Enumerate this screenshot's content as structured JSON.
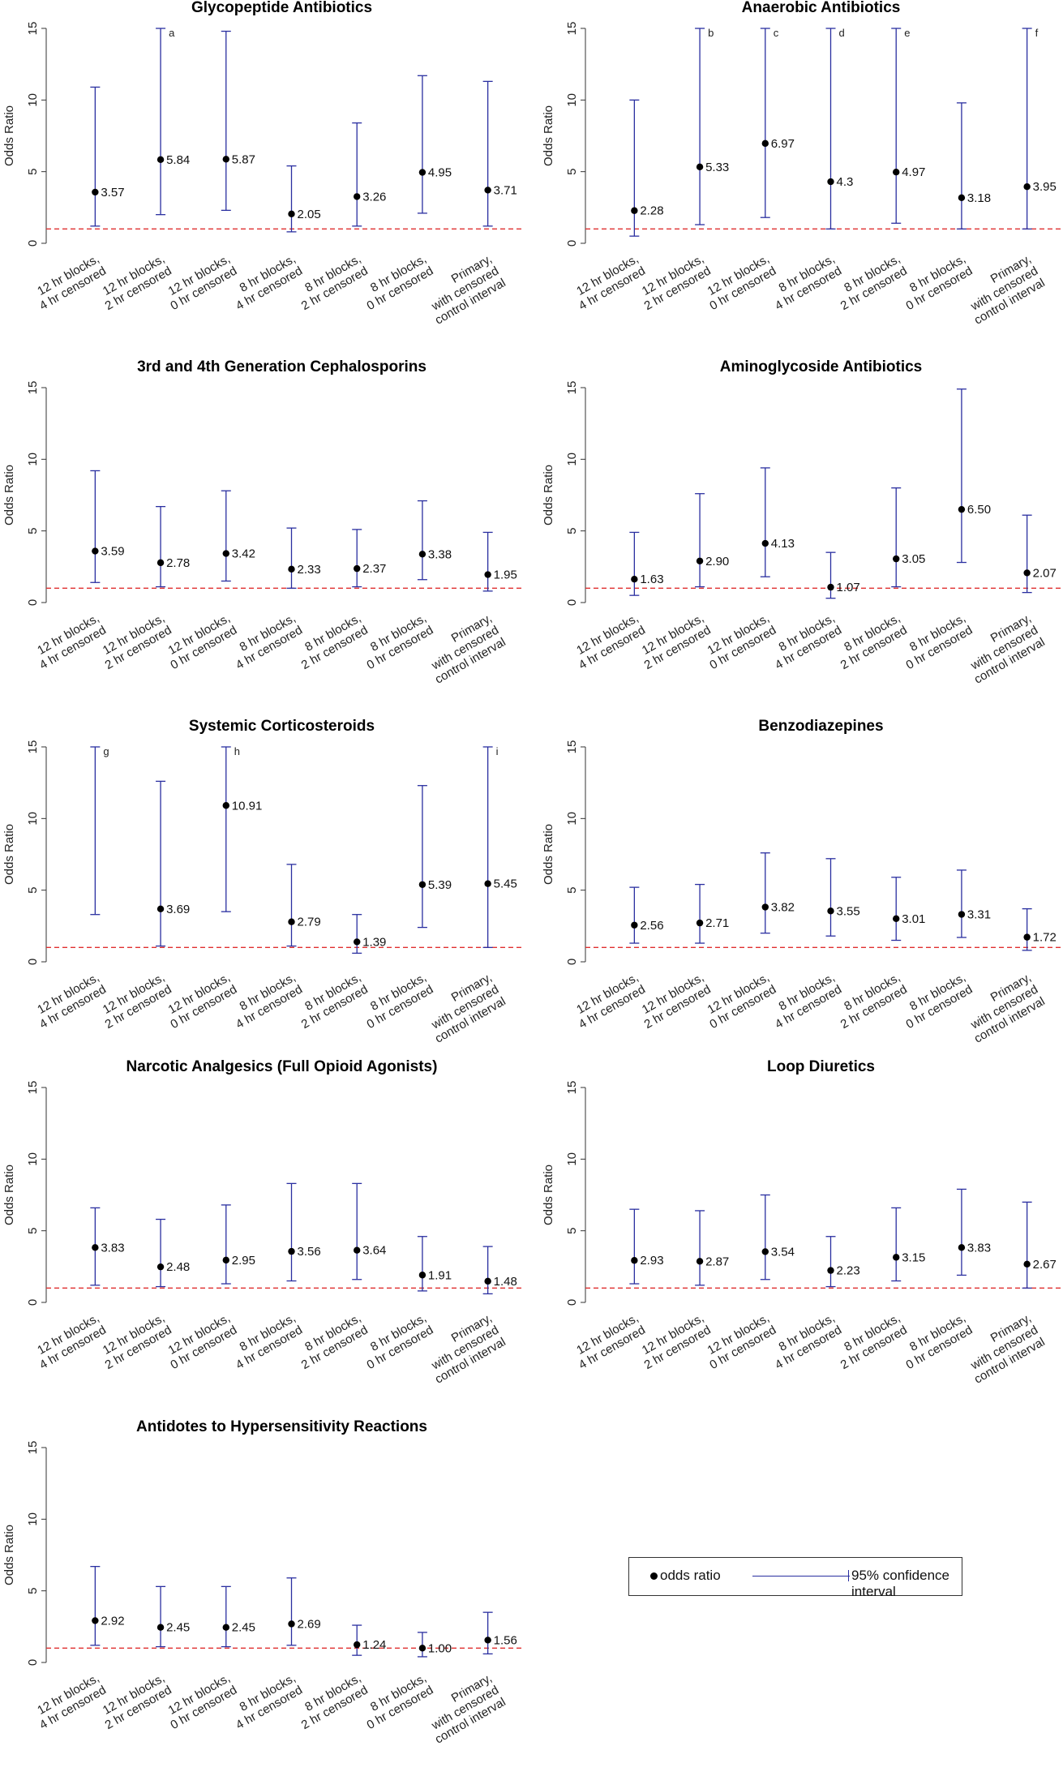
{
  "ci_color": "#2a2fa0",
  "ref_line_color": "#e03030",
  "point_color": "#000000",
  "legend": {
    "point_label": "odds ratio",
    "ci_label": "95% confidence interval"
  },
  "chart_data": [
    {
      "type": "errorbar",
      "title": "Glycopeptide Antibiotics",
      "ylabel": "Odds Ratio",
      "ylim": [
        0,
        15
      ],
      "yticks": [
        0,
        5,
        10,
        15
      ],
      "reference_line": 1,
      "categories": [
        "12 hr blocks,\n4 hr censored",
        "12 hr blocks,\n2 hr censored",
        "12 hr blocks,\n0 hr censored",
        "8 hr blocks,\n4 hr censored",
        "8 hr blocks,\n2 hr censored",
        "8 hr blocks,\n0 hr censored",
        "Primary,\nwith censored\ncontrol interval"
      ],
      "values": [
        3.57,
        5.84,
        5.87,
        2.05,
        3.26,
        4.95,
        3.71
      ],
      "value_labels": [
        "3.57",
        "5.84",
        "5.87",
        "2.05",
        "3.26",
        "4.95",
        "3.71"
      ],
      "ci_lower": [
        1.2,
        2.0,
        2.3,
        0.8,
        1.2,
        2.1,
        1.2
      ],
      "ci_upper": [
        10.9,
        15,
        14.8,
        5.4,
        8.4,
        11.7,
        11.3
      ],
      "notes": [
        "",
        "a",
        "",
        "",
        "",
        "",
        ""
      ]
    },
    {
      "type": "errorbar",
      "title": "Anaerobic Antibiotics",
      "ylabel": "Odds Ratio",
      "ylim": [
        0,
        15
      ],
      "yticks": [
        0,
        5,
        10,
        15
      ],
      "reference_line": 1,
      "categories": [
        "12 hr blocks,\n4 hr censored",
        "12 hr blocks,\n2 hr censored",
        "12 hr blocks,\n0 hr censored",
        "8 hr blocks,\n4 hr censored",
        "8 hr blocks,\n2 hr censored",
        "8 hr blocks,\n0 hr censored",
        "Primary,\nwith censored\ncontrol interval"
      ],
      "values": [
        2.28,
        5.33,
        6.97,
        4.3,
        4.97,
        3.18,
        3.95
      ],
      "value_labels": [
        "2.28",
        "5.33",
        "6.97",
        "4.3",
        "4.97",
        "3.18",
        "3.95"
      ],
      "ci_lower": [
        0.5,
        1.3,
        1.8,
        1.0,
        1.4,
        1.0,
        1.0
      ],
      "ci_upper": [
        10.0,
        15,
        15,
        15,
        15,
        9.8,
        15
      ],
      "notes": [
        "",
        "b",
        "c",
        "d",
        "e",
        "",
        "f"
      ]
    },
    {
      "type": "errorbar",
      "title": "3rd and 4th Generation Cephalosporins",
      "ylabel": "Odds Ratio",
      "ylim": [
        0,
        15
      ],
      "yticks": [
        0,
        5,
        10,
        15
      ],
      "reference_line": 1,
      "categories": [
        "12 hr blocks,\n4 hr censored",
        "12 hr blocks,\n2 hr censored",
        "12 hr blocks,\n0 hr censored",
        "8 hr blocks,\n4 hr censored",
        "8 hr blocks,\n2 hr censored",
        "8 hr blocks,\n0 hr censored",
        "Primary,\nwith censored\ncontrol interval"
      ],
      "values": [
        3.59,
        2.78,
        3.42,
        2.33,
        2.37,
        3.38,
        1.95
      ],
      "value_labels": [
        "3.59",
        "2.78",
        "3.42",
        "2.33",
        "2.37",
        "3.38",
        "1.95"
      ],
      "ci_lower": [
        1.4,
        1.1,
        1.5,
        1.0,
        1.1,
        1.6,
        0.8
      ],
      "ci_upper": [
        9.2,
        6.7,
        7.8,
        5.2,
        5.1,
        7.1,
        4.9
      ],
      "notes": [
        "",
        "",
        "",
        "",
        "",
        "",
        ""
      ]
    },
    {
      "type": "errorbar",
      "title": "Aminoglycoside Antibiotics",
      "ylabel": "Odds Ratio",
      "ylim": [
        0,
        15
      ],
      "yticks": [
        0,
        5,
        10,
        15
      ],
      "reference_line": 1,
      "categories": [
        "12 hr blocks,\n4 hr censored",
        "12 hr blocks,\n2 hr censored",
        "12 hr blocks,\n0 hr censored",
        "8 hr blocks,\n4 hr censored",
        "8 hr blocks,\n2 hr censored",
        "8 hr blocks,\n0 hr censored",
        "Primary,\nwith censored\ncontrol interval"
      ],
      "values": [
        1.63,
        2.9,
        4.13,
        1.07,
        3.05,
        6.5,
        2.07
      ],
      "value_labels": [
        "1.63",
        "2.90",
        "4.13",
        "1.07",
        "3.05",
        "6.50",
        "2.07"
      ],
      "ci_lower": [
        0.5,
        1.1,
        1.8,
        0.3,
        1.1,
        2.8,
        0.7
      ],
      "ci_upper": [
        4.9,
        7.6,
        9.4,
        3.5,
        8.0,
        14.9,
        6.1
      ],
      "notes": [
        "",
        "",
        "",
        "",
        "",
        "",
        ""
      ]
    },
    {
      "type": "errorbar",
      "title": "Systemic Corticosteroids",
      "ylabel": "Odds Ratio",
      "ylim": [
        0,
        15
      ],
      "yticks": [
        0,
        5,
        10,
        15
      ],
      "reference_line": 1,
      "categories": [
        "12 hr blocks,\n4 hr censored",
        "12 hr blocks,\n2 hr censored",
        "12 hr blocks,\n0 hr censored",
        "8 hr blocks,\n4 hr censored",
        "8 hr blocks,\n2 hr censored",
        "8 hr blocks,\n0 hr censored",
        "Primary,\nwith censored\ncontrol interval"
      ],
      "values": [
        null,
        3.69,
        10.91,
        2.79,
        1.39,
        5.39,
        5.45
      ],
      "value_labels": [
        "",
        "3.69",
        "10.91",
        "2.79",
        "1.39",
        "5.39",
        "5.45"
      ],
      "ci_lower": [
        3.3,
        1.1,
        3.5,
        1.1,
        0.6,
        2.4,
        1.0
      ],
      "ci_upper": [
        15,
        12.6,
        15,
        6.8,
        3.3,
        12.3,
        15
      ],
      "notes": [
        "g",
        "",
        "h",
        "",
        "",
        "",
        "i"
      ]
    },
    {
      "type": "errorbar",
      "title": "Benzodiazepines",
      "ylabel": "Odds Ratio",
      "ylim": [
        0,
        15
      ],
      "yticks": [
        0,
        5,
        10,
        15
      ],
      "reference_line": 1,
      "categories": [
        "12 hr blocks,\n4 hr censored",
        "12 hr blocks,\n2 hr censored",
        "12 hr blocks,\n0 hr censored",
        "8 hr blocks,\n4 hr censored",
        "8 hr blocks,\n2 hr censored",
        "8 hr blocks,\n0 hr censored",
        "Primary,\nwith censored\ncontrol interval"
      ],
      "values": [
        2.56,
        2.71,
        3.82,
        3.55,
        3.01,
        3.31,
        1.72
      ],
      "value_labels": [
        "2.56",
        "2.71",
        "3.82",
        "3.55",
        "3.01",
        "3.31",
        "1.72"
      ],
      "ci_lower": [
        1.3,
        1.3,
        2.0,
        1.8,
        1.5,
        1.7,
        0.8
      ],
      "ci_upper": [
        5.2,
        5.4,
        7.6,
        7.2,
        5.9,
        6.4,
        3.7
      ],
      "notes": [
        "",
        "",
        "",
        "",
        "",
        "",
        ""
      ]
    },
    {
      "type": "errorbar",
      "title": "Narcotic Analgesics (Full Opioid Agonists)",
      "ylabel": "Odds Ratio",
      "ylim": [
        0,
        15
      ],
      "yticks": [
        0,
        5,
        10,
        15
      ],
      "reference_line": 1,
      "categories": [
        "12 hr blocks,\n4 hr censored",
        "12 hr blocks,\n2 hr censored",
        "12 hr blocks,\n0 hr censored",
        "8 hr blocks,\n4 hr censored",
        "8 hr blocks,\n2 hr censored",
        "8 hr blocks,\n0 hr censored",
        "Primary,\nwith censored\ncontrol interval"
      ],
      "values": [
        3.83,
        2.48,
        2.95,
        3.56,
        3.64,
        1.91,
        1.48
      ],
      "value_labels": [
        "3.83",
        "2.48",
        "2.95",
        "3.56",
        "3.64",
        "1.91",
        "1.48"
      ],
      "ci_lower": [
        1.2,
        1.1,
        1.3,
        1.5,
        1.6,
        0.8,
        0.6
      ],
      "ci_upper": [
        6.6,
        5.8,
        6.8,
        8.3,
        8.3,
        4.6,
        3.9
      ],
      "notes": [
        "",
        "",
        "",
        "",
        "",
        "",
        ""
      ]
    },
    {
      "type": "errorbar",
      "title": "Loop Diuretics",
      "ylabel": "Odds Ratio",
      "ylim": [
        0,
        15
      ],
      "yticks": [
        0,
        5,
        10,
        15
      ],
      "reference_line": 1,
      "categories": [
        "12 hr blocks,\n4 hr censored",
        "12 hr blocks,\n2 hr censored",
        "12 hr blocks,\n0 hr censored",
        "8 hr blocks,\n4 hr censored",
        "8 hr blocks,\n2 hr censored",
        "8 hr blocks,\n0 hr censored",
        "Primary,\nwith censored\ncontrol interval"
      ],
      "values": [
        2.93,
        2.87,
        3.54,
        2.23,
        3.15,
        3.83,
        2.67
      ],
      "value_labels": [
        "2.93",
        "2.87",
        "3.54",
        "2.23",
        "3.15",
        "3.83",
        "2.67"
      ],
      "ci_lower": [
        1.3,
        1.2,
        1.6,
        1.1,
        1.5,
        1.9,
        1.0
      ],
      "ci_upper": [
        6.5,
        6.4,
        7.5,
        4.6,
        6.6,
        7.9,
        7.0
      ],
      "notes": [
        "",
        "",
        "",
        "",
        "",
        "",
        ""
      ]
    },
    {
      "type": "errorbar",
      "title": "Antidotes to Hypersensitivity Reactions",
      "ylabel": "Odds Ratio",
      "ylim": [
        0,
        15
      ],
      "yticks": [
        0,
        5,
        10,
        15
      ],
      "reference_line": 1,
      "categories": [
        "12 hr blocks,\n4 hr censored",
        "12 hr blocks,\n2 hr censored",
        "12 hr blocks,\n0 hr censored",
        "8 hr blocks,\n4 hr censored",
        "8 hr blocks,\n2 hr censored",
        "8 hr blocks,\n0 hr censored",
        "Primary,\nwith censored\ncontrol interval"
      ],
      "values": [
        2.92,
        2.45,
        2.45,
        2.69,
        1.24,
        1.0,
        1.56
      ],
      "value_labels": [
        "2.92",
        "2.45",
        "2.45",
        "2.69",
        "1.24",
        "1.00",
        "1.56"
      ],
      "ci_lower": [
        1.2,
        1.1,
        1.1,
        1.2,
        0.5,
        0.4,
        0.6
      ],
      "ci_upper": [
        6.7,
        5.3,
        5.3,
        5.9,
        2.6,
        2.1,
        3.5
      ],
      "notes": [
        "",
        "",
        "",
        "",
        "",
        "",
        ""
      ]
    }
  ]
}
